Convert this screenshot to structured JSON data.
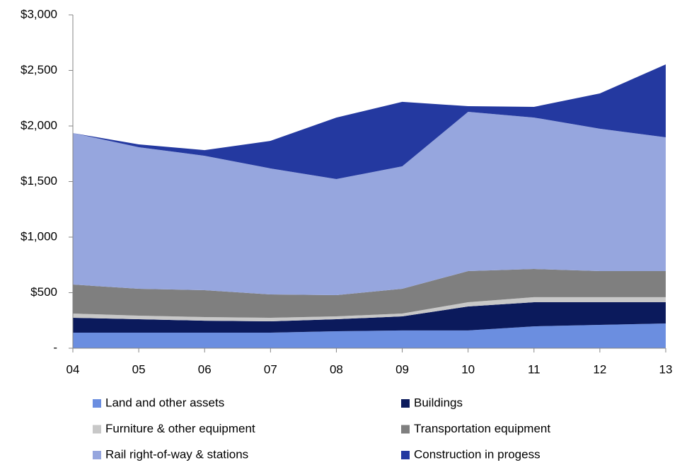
{
  "chart_data": {
    "type": "stacked_area",
    "categories": [
      "04",
      "05",
      "06",
      "07",
      "08",
      "09",
      "10",
      "11",
      "12",
      "13"
    ],
    "series": [
      {
        "name": "Land and other assets",
        "color": "#6b8ee0",
        "values": [
          140,
          140,
          140,
          140,
          153,
          160,
          160,
          197,
          210,
          223
        ]
      },
      {
        "name": "Buildings",
        "color": "#0b1a5c",
        "values": [
          134,
          121,
          108,
          102,
          108,
          127,
          216,
          217,
          204,
          191
        ]
      },
      {
        "name": "Furniture & other equipment",
        "color": "#c8c8c8",
        "values": [
          38,
          32,
          32,
          32,
          26,
          25,
          38,
          45,
          45,
          45
        ]
      },
      {
        "name": "Transportation equipment",
        "color": "#7f7f7f",
        "values": [
          261,
          242,
          242,
          210,
          191,
          223,
          280,
          254,
          235,
          235
        ]
      },
      {
        "name": "Rail right-of-way & stations",
        "color": "#96a6de",
        "values": [
          1363,
          1274,
          1210,
          1134,
          1044,
          1102,
          1433,
          1363,
          1281,
          1204
        ]
      },
      {
        "name": "Construction in progess",
        "color": "#2439a0",
        "values": [
          0,
          25,
          51,
          248,
          554,
          580,
          51,
          96,
          318,
          656
        ]
      }
    ],
    "ylim": [
      0,
      3000
    ],
    "yticks": [
      {
        "value": 0,
        "label": "-"
      },
      {
        "value": 500,
        "label": "$500"
      },
      {
        "value": 1000,
        "label": "$1,000"
      },
      {
        "value": 1500,
        "label": "$1,500"
      },
      {
        "value": 2000,
        "label": "$2,000"
      },
      {
        "value": 2500,
        "label": "$2,500"
      },
      {
        "value": 3000,
        "label": "$3,000"
      }
    ],
    "legend": "bottom"
  }
}
